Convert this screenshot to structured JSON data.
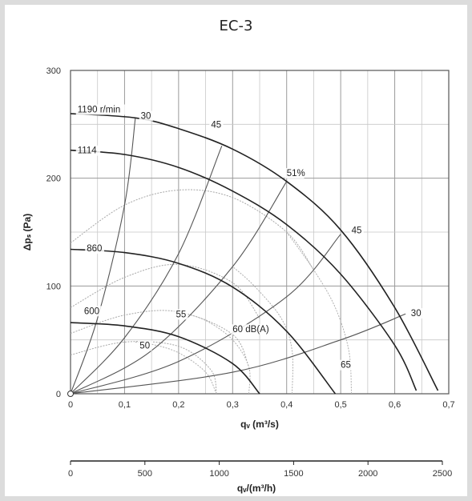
{
  "page": {
    "title": "EC-3"
  },
  "chart_data": {
    "type": "line",
    "title": "EC-3",
    "xlabel": "qᵥ (m³/s)",
    "ylabel": "Δpₛ (Pa)",
    "x2label": "qᵥ/(m³/h)",
    "xlim": [
      0,
      0.7
    ],
    "ylim": [
      0,
      300
    ],
    "x2lim": [
      0,
      2500
    ],
    "xticks": [
      0,
      0.1,
      0.2,
      0.3,
      0.4,
      0.5,
      0.6,
      0.7
    ],
    "xtick_labels": [
      "0",
      "0,1",
      "0,2",
      "0,3",
      "0,4",
      "0,5",
      "0,6",
      "0,7"
    ],
    "yticks": [
      0,
      100,
      200,
      300
    ],
    "ytick_labels": [
      "0",
      "100",
      "200",
      "300"
    ],
    "x2ticks": [
      0,
      500,
      1000,
      1500,
      2000,
      2500
    ],
    "x2tick_labels": [
      "0",
      "500",
      "1000",
      "1500",
      "2000",
      "2500"
    ],
    "grid": true,
    "fan_curves": [
      {
        "name": "1190 r/min",
        "points": [
          [
            0,
            260
          ],
          [
            0.12,
            256
          ],
          [
            0.2,
            246
          ],
          [
            0.3,
            227
          ],
          [
            0.4,
            197
          ],
          [
            0.5,
            152
          ],
          [
            0.6,
            80
          ],
          [
            0.68,
            3
          ]
        ]
      },
      {
        "name": "1114",
        "points": [
          [
            0,
            226
          ],
          [
            0.1,
            222
          ],
          [
            0.2,
            210
          ],
          [
            0.3,
            188
          ],
          [
            0.4,
            157
          ],
          [
            0.5,
            111
          ],
          [
            0.6,
            45
          ],
          [
            0.64,
            3
          ]
        ]
      },
      {
        "name": "860",
        "points": [
          [
            0,
            134
          ],
          [
            0.1,
            131
          ],
          [
            0.2,
            121
          ],
          [
            0.3,
            99
          ],
          [
            0.4,
            58
          ],
          [
            0.49,
            0
          ]
        ]
      },
      {
        "name": "600",
        "points": [
          [
            0,
            66
          ],
          [
            0.1,
            63
          ],
          [
            0.2,
            53
          ],
          [
            0.3,
            28
          ],
          [
            0.35,
            0
          ]
        ]
      }
    ],
    "efficiency_curves": [
      {
        "name": "30",
        "points": [
          [
            0,
            0
          ],
          [
            0.05,
            70
          ],
          [
            0.1,
            175
          ],
          [
            0.12,
            256
          ]
        ]
      },
      {
        "name": "45",
        "points": [
          [
            0,
            0
          ],
          [
            0.1,
            52
          ],
          [
            0.2,
            130
          ],
          [
            0.28,
            230
          ]
        ]
      },
      {
        "name": "51%",
        "points": [
          [
            0,
            0
          ],
          [
            0.15,
            40
          ],
          [
            0.3,
            118
          ],
          [
            0.4,
            197
          ]
        ]
      },
      {
        "name": "45",
        "points": [
          [
            0,
            0
          ],
          [
            0.2,
            30
          ],
          [
            0.4,
            90
          ],
          [
            0.5,
            148
          ]
        ]
      },
      {
        "name": "30",
        "points": [
          [
            0,
            0
          ],
          [
            0.3,
            20
          ],
          [
            0.5,
            50
          ],
          [
            0.62,
            74
          ]
        ]
      }
    ],
    "system_curves": [
      {
        "points": [
          [
            0,
            140
          ],
          [
            0.1,
            175
          ],
          [
            0.2,
            189
          ],
          [
            0.3,
            182
          ],
          [
            0.4,
            150
          ],
          [
            0.45,
            115
          ]
        ]
      },
      {
        "points": [
          [
            0,
            80
          ],
          [
            0.1,
            108
          ],
          [
            0.2,
            120
          ],
          [
            0.3,
            103
          ],
          [
            0.35,
            70
          ]
        ]
      },
      {
        "points": [
          [
            0,
            56
          ],
          [
            0.1,
            73
          ],
          [
            0.2,
            76
          ],
          [
            0.3,
            55
          ],
          [
            0.33,
            25
          ]
        ]
      },
      {
        "points": [
          [
            0,
            36
          ],
          [
            0.1,
            48
          ],
          [
            0.2,
            44
          ],
          [
            0.26,
            22
          ],
          [
            0.27,
            0
          ]
        ]
      }
    ],
    "sound_curves": [
      {
        "name": "65",
        "points": [
          [
            0.52,
            0
          ],
          [
            0.515,
            40
          ],
          [
            0.49,
            80
          ],
          [
            0.45,
            115
          ],
          [
            0.4,
            150
          ]
        ]
      },
      {
        "name": "60 dB(A)",
        "points": [
          [
            0.41,
            0
          ],
          [
            0.41,
            40
          ],
          [
            0.39,
            70
          ],
          [
            0.34,
            100
          ],
          [
            0.3,
            118
          ]
        ]
      },
      {
        "name": "55",
        "points": [
          [
            0.33,
            0
          ],
          [
            0.33,
            25
          ],
          [
            0.3,
            50
          ],
          [
            0.25,
            68
          ],
          [
            0.2,
            76
          ]
        ]
      },
      {
        "name": "50",
        "points": [
          [
            0.27,
            0
          ],
          [
            0.25,
            20
          ],
          [
            0.2,
            38
          ],
          [
            0.15,
            46
          ],
          [
            0.12,
            48
          ]
        ]
      }
    ],
    "annotations": [
      "1190 r/min",
      "1114",
      "860",
      "600",
      "30",
      "45",
      "51%",
      "45",
      "30",
      "55",
      "50",
      "60 dB(A)",
      "65"
    ]
  }
}
